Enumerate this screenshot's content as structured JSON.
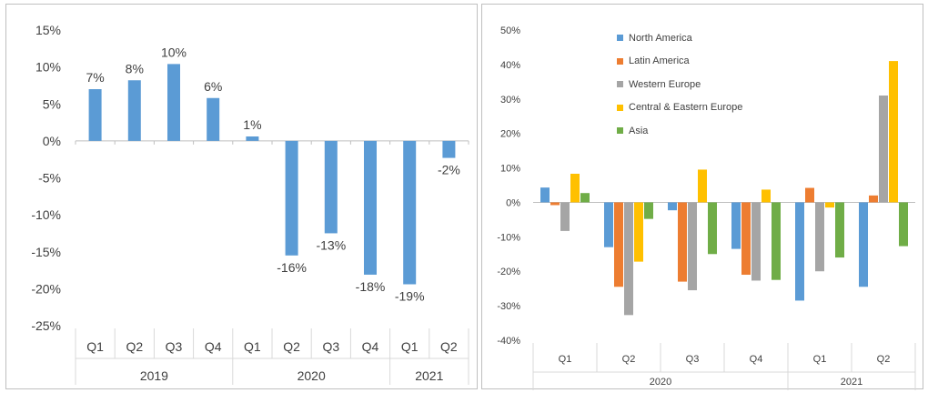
{
  "chart_data": [
    {
      "type": "bar",
      "categories": [
        "Q1",
        "Q2",
        "Q3",
        "Q4",
        "Q1",
        "Q2",
        "Q3",
        "Q4",
        "Q1",
        "Q2"
      ],
      "groups": [
        {
          "label": "2019",
          "count": 4
        },
        {
          "label": "2020",
          "count": 4
        },
        {
          "label": "2021",
          "count": 2
        }
      ],
      "values": [
        7,
        8,
        10,
        6,
        1,
        -16,
        -13,
        -18,
        -19,
        -2
      ],
      "bar_values": [
        7.0,
        8.2,
        10.4,
        5.8,
        0.6,
        -15.5,
        -12.5,
        -18.1,
        -19.4,
        -2.3
      ],
      "data_labels": [
        "7%",
        "8%",
        "10%",
        "6%",
        "1%",
        "-16%",
        "-13%",
        "-18%",
        "-19%",
        "-2%"
      ],
      "yticks": [
        "15%",
        "10%",
        "5%",
        "0%",
        "-5%",
        "-10%",
        "-15%",
        "-20%",
        "-25%"
      ],
      "ylim": [
        -25,
        15
      ],
      "color": "#5b9bd5",
      "grid": false,
      "title": "",
      "xlabel": "",
      "ylabel": ""
    },
    {
      "type": "bar",
      "categories": [
        "Q1",
        "Q2",
        "Q3",
        "Q4",
        "Q1",
        "Q2"
      ],
      "groups": [
        {
          "label": "2020",
          "count": 4
        },
        {
          "label": "2021",
          "count": 2
        }
      ],
      "series": [
        {
          "name": "North America",
          "color": "#5b9bd5",
          "values": [
            4.3,
            -13,
            -2.3,
            -13.5,
            -28.5,
            -24.5
          ]
        },
        {
          "name": "Latin America",
          "color": "#ed7d31",
          "values": [
            -0.8,
            -24.5,
            -23,
            -21,
            4.2,
            2
          ]
        },
        {
          "name": "Western Europe",
          "color": "#a5a5a5",
          "values": [
            -8.3,
            -32.7,
            -25.5,
            -22.7,
            -20,
            31
          ]
        },
        {
          "name": "Central & Eastern Europe",
          "color": "#ffc000",
          "values": [
            8.3,
            -17.2,
            9.5,
            3.7,
            -1.5,
            41
          ]
        },
        {
          "name": "Asia",
          "color": "#70ad47",
          "values": [
            2.7,
            -4.8,
            -15,
            -22.5,
            -16,
            -12.7
          ]
        }
      ],
      "yticks": [
        "50%",
        "40%",
        "30%",
        "20%",
        "10%",
        "0%",
        "-10%",
        "-20%",
        "-30%",
        "-40%"
      ],
      "ylim": [
        -40,
        50
      ],
      "legend_position": "top-left",
      "grid": false,
      "title": "",
      "xlabel": "",
      "ylabel": ""
    }
  ]
}
